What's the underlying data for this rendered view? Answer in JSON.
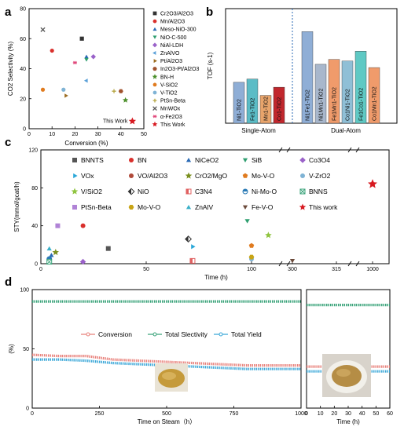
{
  "panel_labels": {
    "a": "a",
    "b": "b",
    "c": "c",
    "d": "d"
  },
  "chart_data": [
    {
      "panel": "a",
      "type": "scatter",
      "xlabel": "Conversion (%)",
      "ylabel": "CO2 Selectivity (%)",
      "xlim": [
        0,
        50
      ],
      "ylim": [
        0,
        80
      ],
      "xticks": [
        0,
        10,
        20,
        30,
        40,
        50
      ],
      "yticks": [
        0,
        20,
        40,
        60,
        80
      ],
      "annotation": "This Work",
      "legend_position": "right",
      "series": [
        {
          "name": "Cr2O3/Al2O3",
          "marker": "square",
          "color": "#333333",
          "x": [
            23
          ],
          "y": [
            60
          ]
        },
        {
          "name": "Mn/Al2O3",
          "marker": "circle",
          "color": "#d9302c",
          "x": [
            10
          ],
          "y": [
            52
          ]
        },
        {
          "name": "Meso-NiO-300",
          "marker": "triangle",
          "color": "#2a6ab5",
          "x": [
            25
          ],
          "y": [
            48
          ]
        },
        {
          "name": "NiO-C-500",
          "marker": "tri-down",
          "color": "#2e9e6f",
          "x": [
            25
          ],
          "y": [
            46
          ]
        },
        {
          "name": "NiAl-LDH",
          "marker": "diamond",
          "color": "#9a62c9",
          "x": [
            28
          ],
          "y": [
            48
          ]
        },
        {
          "name": "ZnAlVO",
          "marker": "tri-left",
          "color": "#5aa0d8",
          "x": [
            25
          ],
          "y": [
            32
          ]
        },
        {
          "name": "Pt/Al2O3",
          "marker": "tri-right",
          "color": "#9b6b1e",
          "x": [
            16
          ],
          "y": [
            22
          ]
        },
        {
          "name": "In2O3-Pt/Al2O3",
          "marker": "hexagon",
          "color": "#a0522d",
          "x": [
            40
          ],
          "y": [
            25
          ]
        },
        {
          "name": "BN-H",
          "marker": "star",
          "color": "#4b8f2a",
          "x": [
            42
          ],
          "y": [
            19
          ]
        },
        {
          "name": "V-SiO2",
          "marker": "circle",
          "color": "#e07b1f",
          "x": [
            6
          ],
          "y": [
            26
          ]
        },
        {
          "name": "V-TiO2",
          "marker": "circle",
          "color": "#7fb3d5",
          "x": [
            15
          ],
          "y": [
            26
          ]
        },
        {
          "name": "PtSn-Beta",
          "marker": "plus",
          "color": "#b5a642",
          "x": [
            37
          ],
          "y": [
            25
          ]
        },
        {
          "name": "MnWOx",
          "marker": "x",
          "color": "#555555",
          "x": [
            6
          ],
          "y": [
            66
          ]
        },
        {
          "name": "α-Fe2O3",
          "marker": "asterisk",
          "color": "#e0487b",
          "x": [
            20
          ],
          "y": [
            44
          ]
        },
        {
          "name": "This Work",
          "marker": "star",
          "color": "#d71920",
          "x": [
            45
          ],
          "y": [
            5
          ]
        }
      ]
    },
    {
      "panel": "b",
      "type": "bar",
      "ylabel": "TOF (s-1)",
      "groups": [
        "Single-Atom",
        "Dual-Atom"
      ],
      "categories": [
        "Ni1-TiO2",
        "Fe1-TiO2",
        "Mn1-TiO2",
        "Co1-TiO2",
        "Ni1Fe1-TiO2",
        "Ni1Mn1-TiO2",
        "Fe1Mn1-TiO2",
        "Co1Ni1-TiO2",
        "Fe1Co1-TiO2",
        "Co1Mn1-TiO2"
      ],
      "values": [
        25,
        27,
        17,
        22,
        56,
        36,
        39,
        38,
        44,
        34
      ],
      "colors": [
        "#8faed6",
        "#5bbcc6",
        "#e8a46b",
        "#c1272d",
        "#8faed6",
        "#a8b7cc",
        "#f09b6b",
        "#8fbfd6",
        "#5fc9c4",
        "#f09b6b"
      ],
      "ylim": [
        0,
        70
      ]
    },
    {
      "panel": "c",
      "type": "scatter",
      "xlabel": "Time (h)",
      "ylabel": "STY(mmol/gcat/h)",
      "ylim": [
        0,
        120
      ],
      "yticks": [
        0,
        40,
        80,
        120
      ],
      "xtick_labels": [
        "0",
        "50",
        "100",
        "300",
        "315",
        "1000"
      ],
      "series": [
        {
          "name": "BNNTS",
          "marker": "square",
          "color": "#555555",
          "x": [
            32
          ],
          "y": [
            16
          ]
        },
        {
          "name": "BN",
          "marker": "circle",
          "color": "#d9302c",
          "x": [
            20
          ],
          "y": [
            40
          ]
        },
        {
          "name": "NiCeO2",
          "marker": "triangle",
          "color": "#2a6ab5",
          "x": [
            5
          ],
          "y": [
            9
          ]
        },
        {
          "name": "SiB",
          "marker": "tri-down",
          "color": "#2e9e6f",
          "x": [
            98
          ],
          "y": [
            45
          ]
        },
        {
          "name": "Co3O4",
          "marker": "diamond",
          "color": "#9a62c9",
          "x": [
            20
          ],
          "y": [
            2
          ]
        },
        {
          "name": "VOx",
          "marker": "tri-right",
          "color": "#2aa7d8",
          "x": [
            72
          ],
          "y": [
            18
          ]
        },
        {
          "name": "VO/Al2O3",
          "marker": "circle",
          "color": "#b04a3a",
          "x": [
            4
          ],
          "y": [
            3
          ]
        },
        {
          "name": "CrO2/MgO",
          "marker": "star",
          "color": "#7a8f1e",
          "x": [
            7
          ],
          "y": [
            12
          ]
        },
        {
          "name": "Mo-V-O",
          "marker": "pentagon",
          "color": "#e07b1f",
          "x": [
            100
          ],
          "y": [
            19
          ]
        },
        {
          "name": "V-ZrO2",
          "marker": "circle",
          "color": "#7fb3d5",
          "x": [
            100
          ],
          "y": [
            5
          ]
        },
        {
          "name": "V/SiO2",
          "marker": "star",
          "color": "#8fc43f",
          "x": [
            108
          ],
          "y": [
            30
          ]
        },
        {
          "name": "NiO",
          "marker": "diamond-half",
          "color": "#333333",
          "x": [
            70
          ],
          "y": [
            26
          ]
        },
        {
          "name": "C3N4",
          "marker": "square-half",
          "color": "#e06060",
          "x": [
            72
          ],
          "y": [
            3
          ]
        },
        {
          "name": "Ni-Mo-O",
          "marker": "circle-half",
          "color": "#2a7ab5",
          "x": [
            4
          ],
          "y": [
            5
          ]
        },
        {
          "name": "BNNS",
          "marker": "square-x",
          "color": "#3aa37a",
          "x": [
            4
          ],
          "y": [
            2
          ]
        },
        {
          "name": "PtSn-Beta",
          "marker": "square",
          "color": "#b083d6",
          "x": [
            8
          ],
          "y": [
            40
          ]
        },
        {
          "name": "Mo-V-O",
          "marker": "hexagon",
          "color": "#c8a415",
          "x": [
            100
          ],
          "y": [
            7
          ]
        },
        {
          "name": "ZnAlV",
          "marker": "triangle",
          "color": "#3ab0c8",
          "x": [
            4
          ],
          "y": [
            16
          ]
        },
        {
          "name": "Fe-V-O",
          "marker": "tri-down",
          "color": "#6b4a3a",
          "x": [
            300
          ],
          "y": [
            3
          ]
        },
        {
          "name": "This work",
          "marker": "star",
          "color": "#d71920",
          "x": [
            1000
          ],
          "y": [
            84
          ]
        }
      ]
    },
    {
      "panel": "d",
      "type": "line",
      "xlabel": "Time on Steam（h）",
      "xlabel_right": "Time (h)",
      "ylabel": "(%)",
      "ylim": [
        0,
        100
      ],
      "yticks": [
        0,
        50,
        100
      ],
      "xlim": [
        0,
        1000
      ],
      "xticks": [
        0,
        250,
        500,
        750,
        1000
      ],
      "xlim_right": [
        0,
        60
      ],
      "xticks_right": [
        0,
        10,
        20,
        30,
        40,
        50,
        60
      ],
      "series": [
        {
          "name": "Conversion",
          "color": "#e8807a",
          "x": [
            0,
            100,
            200,
            300,
            400,
            500,
            600,
            700,
            800,
            900,
            1000
          ],
          "y": [
            45,
            44,
            44,
            41,
            40,
            39,
            38,
            37,
            36,
            36,
            36
          ]
        },
        {
          "name": "Total Slectivity",
          "color": "#3aa37a",
          "x": [
            0,
            100,
            200,
            300,
            400,
            500,
            600,
            700,
            800,
            900,
            1000
          ],
          "y": [
            90,
            90,
            90,
            90,
            90,
            90,
            90,
            90,
            90,
            90,
            90
          ]
        },
        {
          "name": "Total Yield",
          "color": "#3aa7d8",
          "x": [
            0,
            100,
            200,
            300,
            400,
            500,
            600,
            700,
            800,
            900,
            1000
          ],
          "y": [
            41,
            41,
            40,
            38,
            37,
            36,
            35,
            34,
            33,
            33,
            33
          ]
        }
      ],
      "series_right": [
        {
          "name": "Conversion",
          "color": "#e8807a",
          "x": [
            0,
            10,
            20,
            30,
            40,
            50,
            60
          ],
          "y": [
            35,
            35,
            35,
            35,
            35,
            35,
            35
          ]
        },
        {
          "name": "Total Slectivity",
          "color": "#3aa37a",
          "x": [
            0,
            10,
            20,
            30,
            40,
            50,
            60
          ],
          "y": [
            87,
            87,
            87,
            87,
            87,
            87,
            87
          ]
        },
        {
          "name": "Total Yield",
          "color": "#3aa7d8",
          "x": [
            0,
            10,
            20,
            30,
            40,
            50,
            60
          ],
          "y": [
            31,
            31,
            31,
            31,
            31,
            31,
            31
          ]
        }
      ]
    }
  ]
}
